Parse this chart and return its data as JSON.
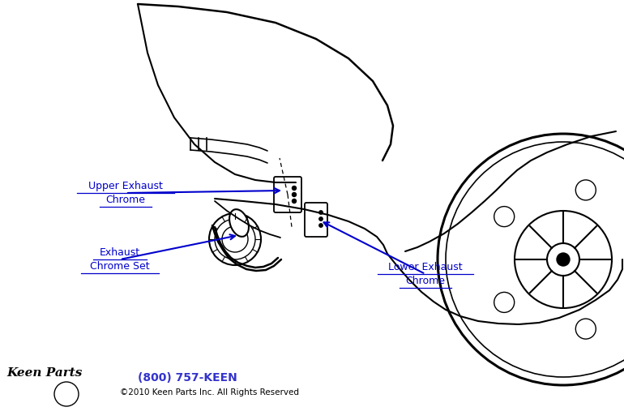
{
  "bg_color": "#ffffff",
  "line_color": "#000000",
  "arrow_color": "#0000cc",
  "label_color": "#cc0000",
  "footer_phone_color": "#3333cc",
  "footer_text_color": "#000000",
  "labels": {
    "upper_exhaust_1": "Upper Exhaust",
    "upper_exhaust_2": "Chrome",
    "exhaust_set_1": "Exhaust",
    "exhaust_set_2": "Chrome Set",
    "lower_exhaust_1": "Lower Exhaust",
    "lower_exhaust_2": "Chrome"
  },
  "footer_phone": "(800) 757-KEEN",
  "footer_copy": "©2010 Keen Parts Inc. All Rights Reserved",
  "figsize": [
    7.7,
    5.18
  ],
  "dpi": 100
}
